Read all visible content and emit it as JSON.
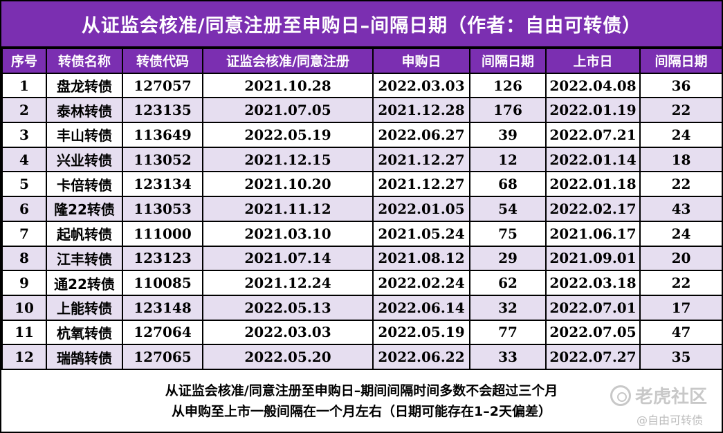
{
  "title": "从证监会核准/同意注册至申购日–间隔日期（作者：自由可转债）",
  "headers": [
    "序号",
    "转债名称",
    "转债代码",
    "证监会核准/同意注册",
    "申购日",
    "间隔日期",
    "上市日",
    "间隔日期"
  ],
  "rows": [
    [
      "1",
      "盘龙转债",
      "127057",
      "2021.10.28",
      "2022.03.03",
      "126",
      "2022.04.08",
      "36"
    ],
    [
      "2",
      "泰林转债",
      "123135",
      "2021.07.05",
      "2021.12.28",
      "176",
      "2022.01.19",
      "22"
    ],
    [
      "3",
      "丰山转债",
      "113649",
      "2022.05.19",
      "2022.06.27",
      "39",
      "2022.07.21",
      "24"
    ],
    [
      "4",
      "兴业转债",
      "113052",
      "2021.12.15",
      "2021.12.27",
      "12",
      "2022.01.14",
      "18"
    ],
    [
      "5",
      "卡倍转债",
      "123134",
      "2021.10.20",
      "2021.12.27",
      "68",
      "2022.01.18",
      "22"
    ],
    [
      "6",
      "隆22转债",
      "113053",
      "2021.11.12",
      "2022.01.05",
      "54",
      "2022.02.17",
      "43"
    ],
    [
      "7",
      "起帆转债",
      "111000",
      "2021.03.10",
      "2021.05.24",
      "75",
      "2021.06.17",
      "24"
    ],
    [
      "8",
      "江丰转债",
      "123123",
      "2021.07.14",
      "2021.08.12",
      "29",
      "2021.09.01",
      "20"
    ],
    [
      "9",
      "通22转债",
      "110085",
      "2021.12.24",
      "2022.02.24",
      "62",
      "2022.03.18",
      "22"
    ],
    [
      "10",
      "上能转债",
      "123148",
      "2022.05.13",
      "2022.06.14",
      "32",
      "2022.07.01",
      "17"
    ],
    [
      "11",
      "杭氧转债",
      "127064",
      "2022.03.03",
      "2022.05.19",
      "77",
      "2022.07.05",
      "47"
    ],
    [
      "12",
      "瑞鹄转债",
      "127065",
      "2022.05.20",
      "2022.06.22",
      "33",
      "2022.07.27",
      "35"
    ]
  ],
  "footer": {
    "line1": "从证监会核准/同意注册至申购日–期间间隔时间多数不会超过三个月",
    "line2": "从申购至上市一般间隔在一个月左右（日期可能存在1–2天偏差）"
  },
  "watermark": {
    "brand": "老虎社区",
    "author": "@自由可转债"
  },
  "colors": {
    "header_bg": "#7b2fb1",
    "row_alt_bg": "#e6def0"
  }
}
